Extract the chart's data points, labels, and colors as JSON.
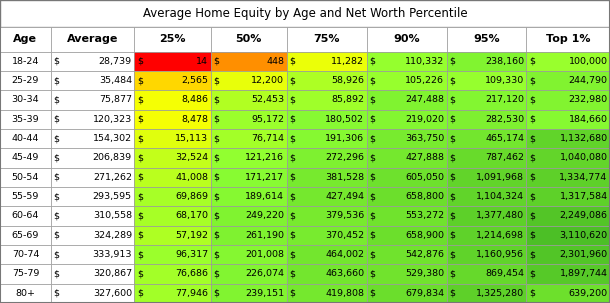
{
  "title": "Average Home Equity by Age and Net Worth Percentile",
  "columns": [
    "Age",
    "Average",
    "25%",
    "50%",
    "75%",
    "90%",
    "95%",
    "Top 1%"
  ],
  "ages": [
    "18-24",
    "25-29",
    "30-34",
    "35-39",
    "40-44",
    "45-49",
    "50-54",
    "55-59",
    "60-64",
    "65-69",
    "70-74",
    "75-79",
    "80+"
  ],
  "data": {
    "Average": [
      28739,
      35484,
      75877,
      120323,
      154302,
      206839,
      271262,
      293595,
      310558,
      324289,
      333913,
      320867,
      327600
    ],
    "25%": [
      14,
      2565,
      8486,
      8478,
      15113,
      32524,
      41008,
      69869,
      68170,
      57192,
      96317,
      76686,
      77946
    ],
    "50%": [
      448,
      12200,
      52453,
      95172,
      76714,
      121216,
      171217,
      189614,
      249220,
      261190,
      201008,
      226074,
      239151
    ],
    "75%": [
      11282,
      58926,
      85892,
      180502,
      191306,
      272296,
      381528,
      427494,
      379536,
      370452,
      464002,
      463660,
      419808
    ],
    "90%": [
      110332,
      105226,
      247488,
      219020,
      363750,
      427888,
      605050,
      658800,
      553272,
      658900,
      542876,
      529380,
      679834
    ],
    "95%": [
      238160,
      109330,
      217120,
      282530,
      465174,
      787462,
      1091968,
      1104324,
      1377480,
      1214698,
      1160956,
      869454,
      1325280
    ],
    "Top 1%": [
      100000,
      244790,
      232980,
      184660,
      1132680,
      1040080,
      1334774,
      1317584,
      2249086,
      3110620,
      2301960,
      1897744,
      639200
    ]
  },
  "background": "#ffffff",
  "grid_color": "#999999",
  "text_color": "#000000",
  "title_fontsize": 8.5,
  "cell_fontsize": 6.8,
  "header_fontsize": 8.0
}
